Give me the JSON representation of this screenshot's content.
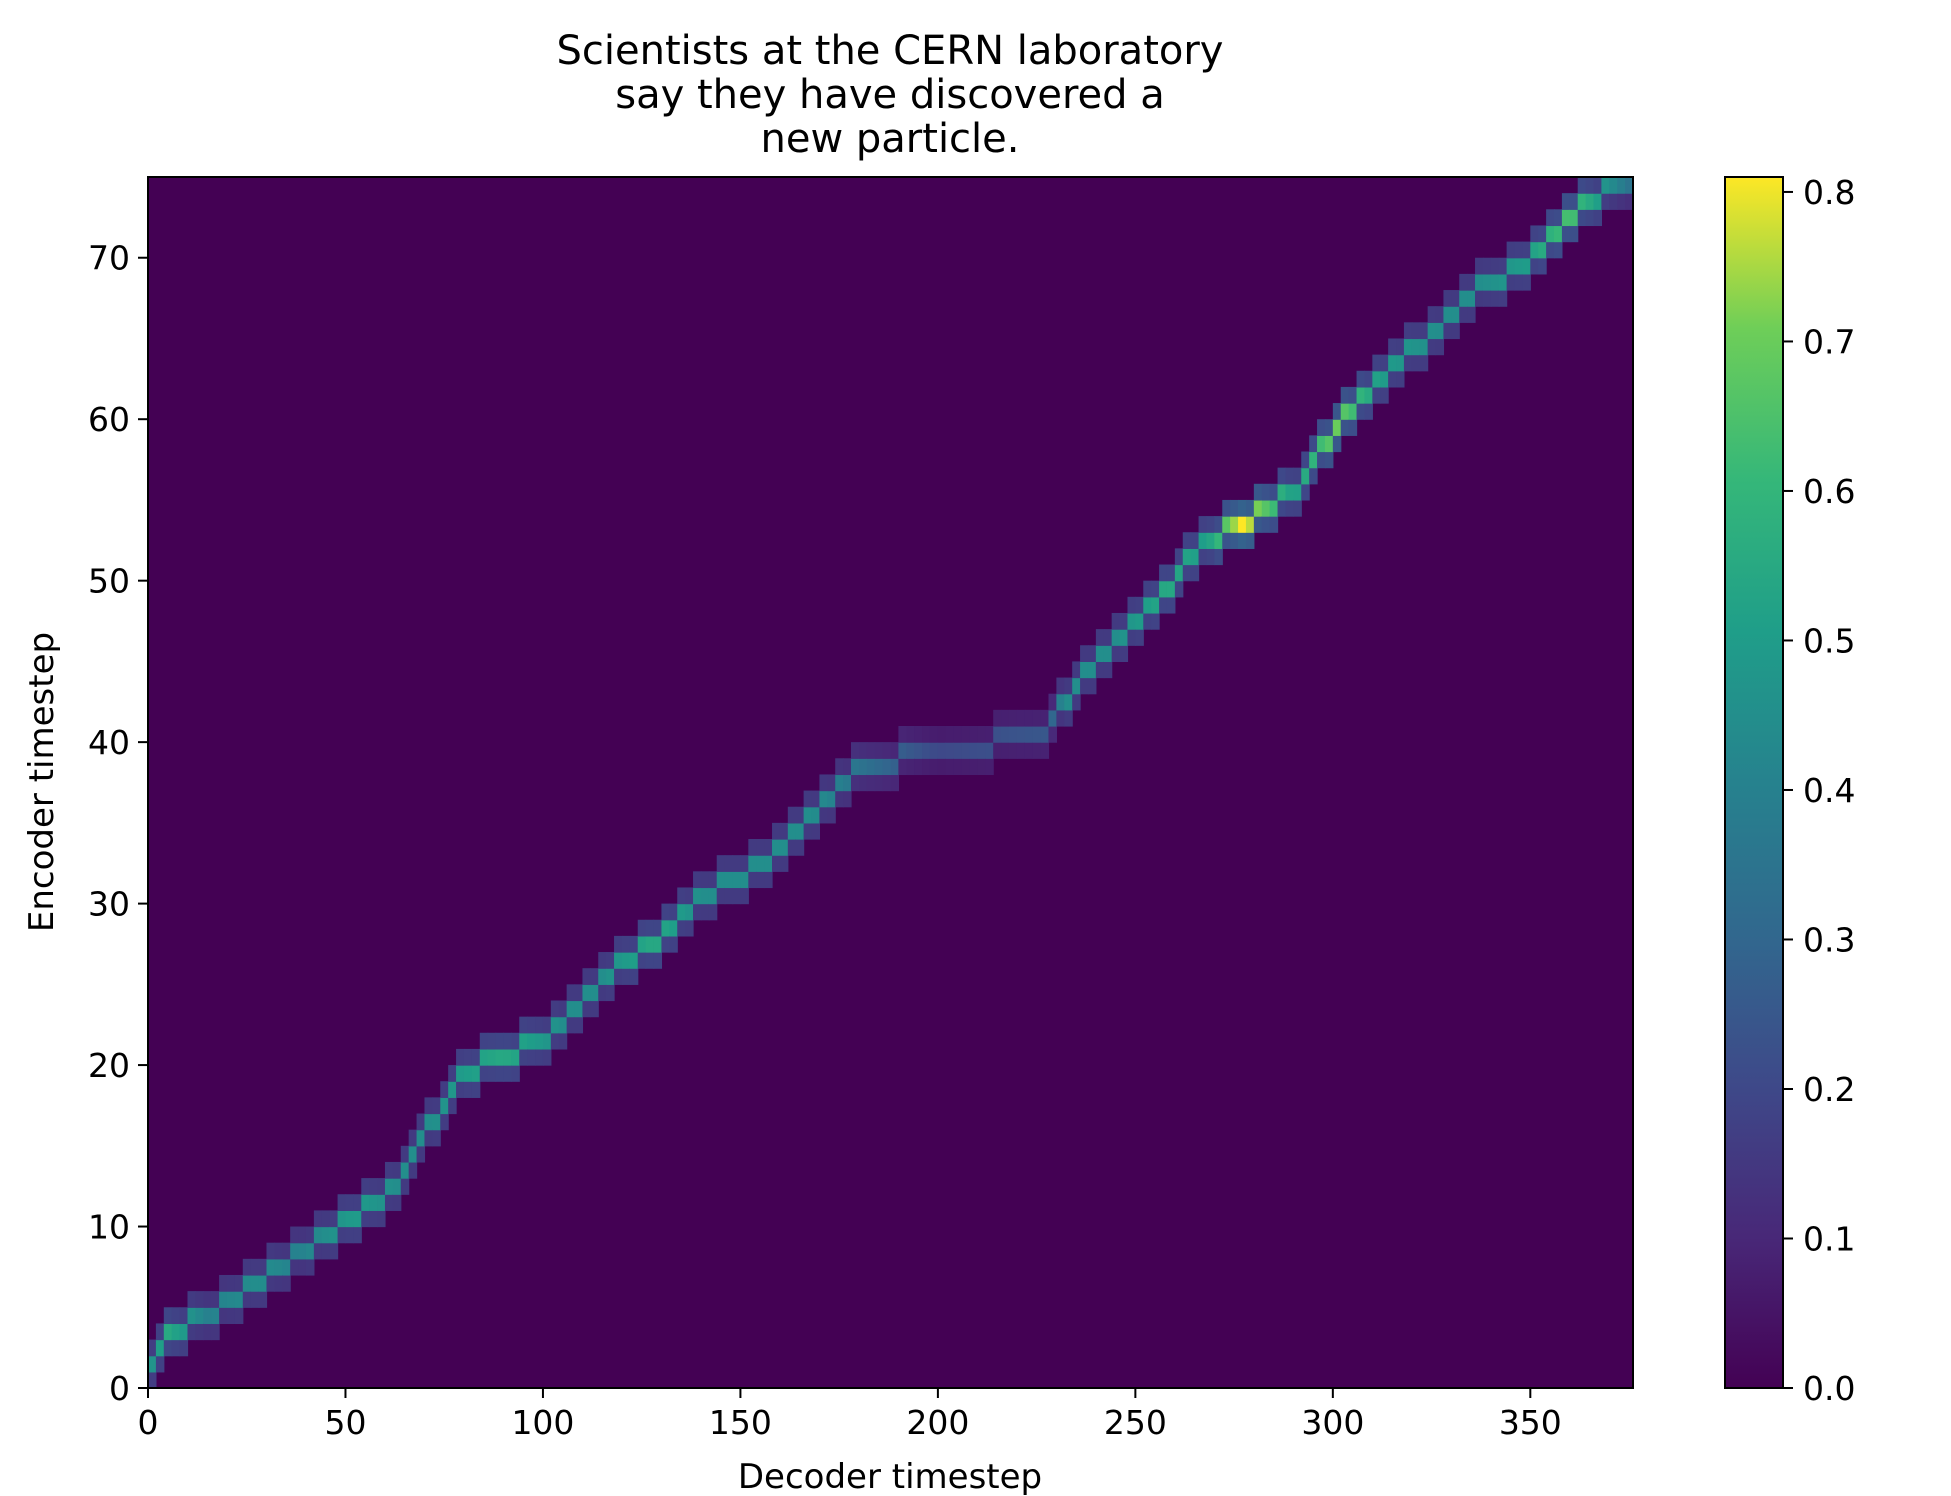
{
  "chart_data": {
    "type": "heatmap",
    "title_lines": [
      "Scientists at the CERN laboratory",
      "say they have discovered a",
      "new particle."
    ],
    "xlabel": "Decoder timestep",
    "ylabel": "Encoder timestep",
    "xlim": [
      0,
      376
    ],
    "ylim": [
      0,
      75
    ],
    "x_ticks": [
      0,
      50,
      100,
      150,
      200,
      250,
      300,
      350
    ],
    "y_ticks": [
      0,
      10,
      20,
      30,
      40,
      50,
      60,
      70
    ],
    "colormap": "viridis",
    "colorbar": {
      "min": 0.0,
      "max": 0.81,
      "ticks": [
        0.0,
        0.1,
        0.2,
        0.3,
        0.4,
        0.5,
        0.6,
        0.7,
        0.8
      ],
      "tick_labels": [
        "0.0",
        "0.1",
        "0.2",
        "0.3",
        "0.4",
        "0.5",
        "0.6",
        "0.7",
        "0.8"
      ]
    },
    "background_value": 0.0,
    "alignment_path": [
      {
        "decoder": 0,
        "encoder": 1,
        "value": 0.45
      },
      {
        "decoder": 5,
        "encoder": 3,
        "value": 0.55
      },
      {
        "decoder": 15,
        "encoder": 4,
        "value": 0.4
      },
      {
        "decoder": 28,
        "encoder": 6,
        "value": 0.45
      },
      {
        "decoder": 38,
        "encoder": 8,
        "value": 0.4
      },
      {
        "decoder": 52,
        "encoder": 10,
        "value": 0.5
      },
      {
        "decoder": 62,
        "encoder": 12,
        "value": 0.45
      },
      {
        "decoder": 72,
        "encoder": 16,
        "value": 0.45
      },
      {
        "decoder": 80,
        "encoder": 19,
        "value": 0.5
      },
      {
        "decoder": 90,
        "encoder": 20,
        "value": 0.55
      },
      {
        "decoder": 105,
        "encoder": 22,
        "value": 0.45
      },
      {
        "decoder": 115,
        "encoder": 25,
        "value": 0.45
      },
      {
        "decoder": 128,
        "encoder": 27,
        "value": 0.55
      },
      {
        "decoder": 140,
        "encoder": 30,
        "value": 0.45
      },
      {
        "decoder": 155,
        "encoder": 32,
        "value": 0.45
      },
      {
        "decoder": 168,
        "encoder": 35,
        "value": 0.45
      },
      {
        "decoder": 180,
        "encoder": 38,
        "value": 0.35
      },
      {
        "decoder": 200,
        "encoder": 39,
        "value": 0.2
      },
      {
        "decoder": 228,
        "encoder": 40,
        "value": 0.25
      },
      {
        "decoder": 232,
        "encoder": 42,
        "value": 0.45
      },
      {
        "decoder": 245,
        "encoder": 46,
        "value": 0.45
      },
      {
        "decoder": 258,
        "encoder": 49,
        "value": 0.55
      },
      {
        "decoder": 268,
        "encoder": 52,
        "value": 0.5
      },
      {
        "decoder": 277,
        "encoder": 53,
        "value": 0.81
      },
      {
        "decoder": 290,
        "encoder": 55,
        "value": 0.5
      },
      {
        "decoder": 301,
        "encoder": 59,
        "value": 0.7
      },
      {
        "decoder": 312,
        "encoder": 62,
        "value": 0.5
      },
      {
        "decoder": 326,
        "encoder": 65,
        "value": 0.45
      },
      {
        "decoder": 338,
        "encoder": 68,
        "value": 0.45
      },
      {
        "decoder": 349,
        "encoder": 69,
        "value": 0.5
      },
      {
        "decoder": 360,
        "encoder": 72,
        "value": 0.65
      },
      {
        "decoder": 370,
        "encoder": 74,
        "value": 0.45
      },
      {
        "decoder": 375,
        "encoder": 74,
        "value": 0.35
      }
    ]
  }
}
